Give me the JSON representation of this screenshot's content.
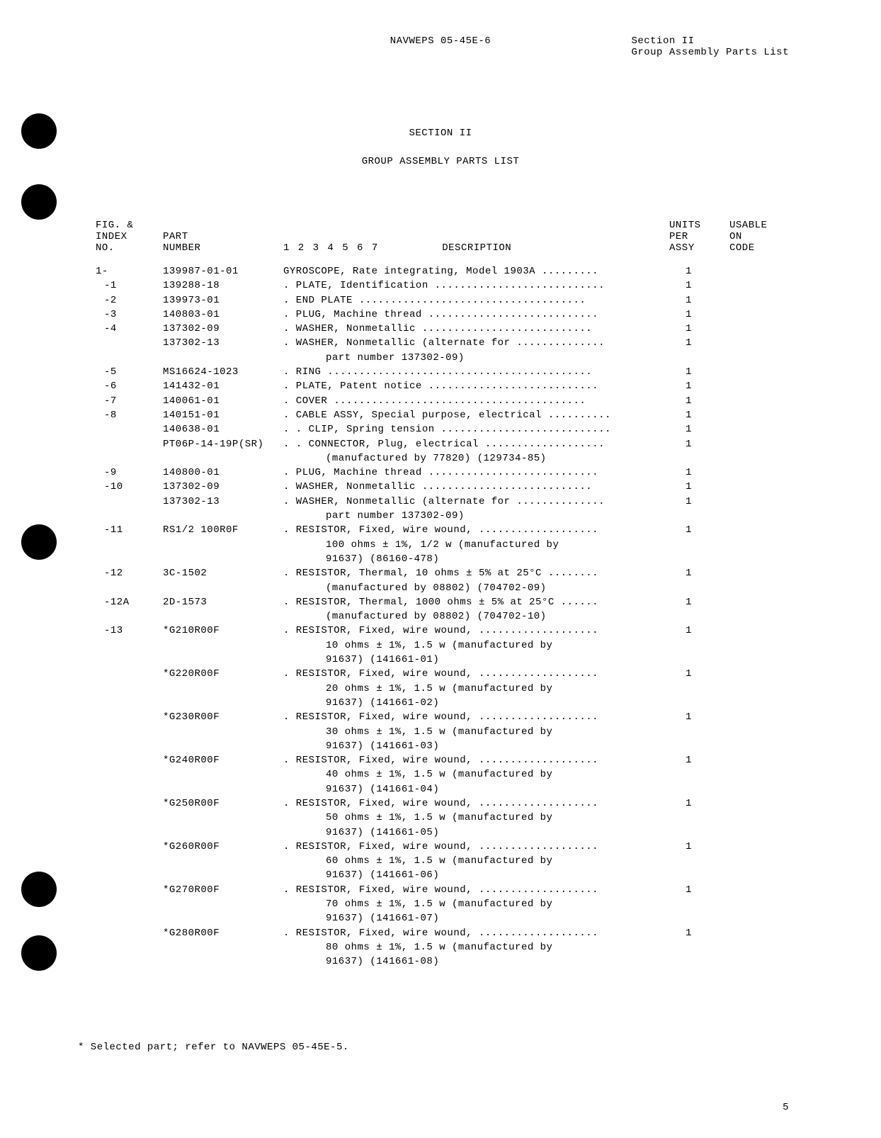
{
  "header": {
    "doc_id": "NAVWEPS 05-45E-6",
    "section": "Section II",
    "subtitle": "Group Assembly Parts List"
  },
  "section": {
    "title": "SECTION II",
    "subtitle": "GROUP ASSEMBLY PARTS LIST"
  },
  "columns": {
    "fig1": "FIG. &",
    "fig2": "INDEX",
    "fig3": "NO.",
    "part1": "PART",
    "part2": "NUMBER",
    "desc_nums": "1 2 3 4 5 6 7",
    "desc": "DESCRIPTION",
    "units1": "UNITS",
    "units2": "PER",
    "units3": "ASSY",
    "code1": "USABLE",
    "code2": "ON",
    "code3": "CODE"
  },
  "rows": [
    {
      "fig": "1-",
      "part": "139987-01-01",
      "desc": "GYROSCOPE, Rate integrating, Model 1903A .........",
      "units": "1"
    },
    {
      "fig": "-1",
      "part": "139288-18",
      "desc": ". PLATE, Identification ...........................",
      "units": "1"
    },
    {
      "fig": "-2",
      "part": "139973-01",
      "desc": ". END PLATE  ....................................",
      "units": "1"
    },
    {
      "fig": "-3",
      "part": "140803-01",
      "desc": ". PLUG, Machine thread ...........................",
      "units": "1"
    },
    {
      "fig": "-4",
      "part": "137302-09",
      "desc": ". WASHER, Nonmetallic  ...........................",
      "units": "1"
    },
    {
      "fig": "",
      "part": "137302-13",
      "desc": ". WASHER, Nonmetallic (alternate for  ..............",
      "units": "1"
    },
    {
      "fig": "",
      "part": "",
      "desc": "part number 137302-09)",
      "units": "",
      "cont": true
    },
    {
      "fig": "-5",
      "part": "MS16624-1023",
      "desc": ". RING  ..........................................",
      "units": "1"
    },
    {
      "fig": "-6",
      "part": "141432-01",
      "desc": ". PLATE, Patent notice  ...........................",
      "units": "1"
    },
    {
      "fig": "-7",
      "part": "140061-01",
      "desc": ". COVER  ........................................",
      "units": "1"
    },
    {
      "fig": "-8",
      "part": "140151-01",
      "desc": ". CABLE ASSY, Special purpose, electrical ..........",
      "units": "1"
    },
    {
      "fig": "",
      "part": "140638-01",
      "desc": ". . CLIP, Spring tension ...........................",
      "units": "1"
    },
    {
      "fig": "",
      "part": "PT06P-14-19P(SR)",
      "desc": ". . CONNECTOR, Plug, electrical ...................",
      "units": "1"
    },
    {
      "fig": "",
      "part": "",
      "desc": "(manufactured by 77820) (129734-85)",
      "units": "",
      "cont": true
    },
    {
      "fig": "-9",
      "part": "140800-01",
      "desc": ". PLUG, Machine thread ...........................",
      "units": "1"
    },
    {
      "fig": "-10",
      "part": "137302-09",
      "desc": ". WASHER, Nonmetallic  ...........................",
      "units": "1"
    },
    {
      "fig": "",
      "part": "137302-13",
      "desc": ". WASHER, Nonmetallic (alternate for  ..............",
      "units": "1"
    },
    {
      "fig": "",
      "part": "",
      "desc": "part number 137302-09)",
      "units": "",
      "cont": true
    },
    {
      "fig": "-11",
      "part": "RS1/2 100R0F",
      "desc": ". RESISTOR, Fixed, wire wound,  ...................",
      "units": "1"
    },
    {
      "fig": "",
      "part": "",
      "desc": "100 ohms ± 1%, 1/2 w (manufactured by",
      "units": "",
      "cont": true
    },
    {
      "fig": "",
      "part": "",
      "desc": "91637) (86160-478)",
      "units": "",
      "cont": true
    },
    {
      "fig": "-12",
      "part": "3C-1502",
      "desc": ". RESISTOR, Thermal, 10 ohms ± 5% at 25°C ........",
      "units": "1"
    },
    {
      "fig": "",
      "part": "",
      "desc": "(manufactured by 08802) (704702-09)",
      "units": "",
      "cont": true
    },
    {
      "fig": "-12A",
      "part": "2D-1573",
      "desc": ". RESISTOR, Thermal, 1000 ohms ± 5% at 25°C ......",
      "units": "1"
    },
    {
      "fig": "",
      "part": "",
      "desc": "(manufactured by 08802) (704702-10)",
      "units": "",
      "cont": true
    },
    {
      "fig": "-13",
      "part": "*G210R00F",
      "desc": ". RESISTOR, Fixed, wire wound,  ...................",
      "units": "1"
    },
    {
      "fig": "",
      "part": "",
      "desc": "10 ohms ± 1%, 1.5 w (manufactured by",
      "units": "",
      "cont": true
    },
    {
      "fig": "",
      "part": "",
      "desc": "91637) (141661-01)",
      "units": "",
      "cont": true
    },
    {
      "fig": "",
      "part": "*G220R00F",
      "desc": ". RESISTOR, Fixed, wire wound,  ...................",
      "units": "1"
    },
    {
      "fig": "",
      "part": "",
      "desc": "20 ohms ± 1%, 1.5 w (manufactured by",
      "units": "",
      "cont": true
    },
    {
      "fig": "",
      "part": "",
      "desc": "91637) (141661-02)",
      "units": "",
      "cont": true
    },
    {
      "fig": "",
      "part": "*G230R00F",
      "desc": ". RESISTOR, Fixed, wire wound,  ...................",
      "units": "1"
    },
    {
      "fig": "",
      "part": "",
      "desc": "30 ohms ± 1%, 1.5 w (manufactured by",
      "units": "",
      "cont": true
    },
    {
      "fig": "",
      "part": "",
      "desc": "91637) (141661-03)",
      "units": "",
      "cont": true
    },
    {
      "fig": "",
      "part": "*G240R00F",
      "desc": ". RESISTOR, Fixed, wire wound,  ...................",
      "units": "1"
    },
    {
      "fig": "",
      "part": "",
      "desc": "40 ohms ± 1%, 1.5 w (manufactured by",
      "units": "",
      "cont": true
    },
    {
      "fig": "",
      "part": "",
      "desc": "91637) (141661-04)",
      "units": "",
      "cont": true
    },
    {
      "fig": "",
      "part": "*G250R00F",
      "desc": ". RESISTOR, Fixed, wire wound,  ...................",
      "units": "1"
    },
    {
      "fig": "",
      "part": "",
      "desc": "50 ohms ± 1%, 1.5 w (manufactured by",
      "units": "",
      "cont": true
    },
    {
      "fig": "",
      "part": "",
      "desc": "91637) (141661-05)",
      "units": "",
      "cont": true
    },
    {
      "fig": "",
      "part": "*G260R00F",
      "desc": ". RESISTOR, Fixed, wire wound,  ...................",
      "units": "1"
    },
    {
      "fig": "",
      "part": "",
      "desc": "60 ohms ± 1%, 1.5 w (manufactured by",
      "units": "",
      "cont": true
    },
    {
      "fig": "",
      "part": "",
      "desc": "91637) (141661-06)",
      "units": "",
      "cont": true
    },
    {
      "fig": "",
      "part": "*G270R00F",
      "desc": ". RESISTOR, Fixed, wire wound,  ...................",
      "units": "1"
    },
    {
      "fig": "",
      "part": "",
      "desc": "70 ohms ± 1%, 1.5 w (manufactured by",
      "units": "",
      "cont": true
    },
    {
      "fig": "",
      "part": "",
      "desc": "91637) (141661-07)",
      "units": "",
      "cont": true
    },
    {
      "fig": "",
      "part": "*G280R00F",
      "desc": ". RESISTOR, Fixed, wire wound,  ...................",
      "units": "1"
    },
    {
      "fig": "",
      "part": "",
      "desc": "80 ohms ± 1%, 1.5 w (manufactured by",
      "units": "",
      "cont": true
    },
    {
      "fig": "",
      "part": "",
      "desc": "91637) (141661-08)",
      "units": "",
      "cont": true
    }
  ],
  "footnote": "* Selected part; refer to NAVWEPS 05-45E-5.",
  "page_num": "5",
  "punch_holes": [
    160,
    260,
    740,
    1230,
    1320
  ]
}
